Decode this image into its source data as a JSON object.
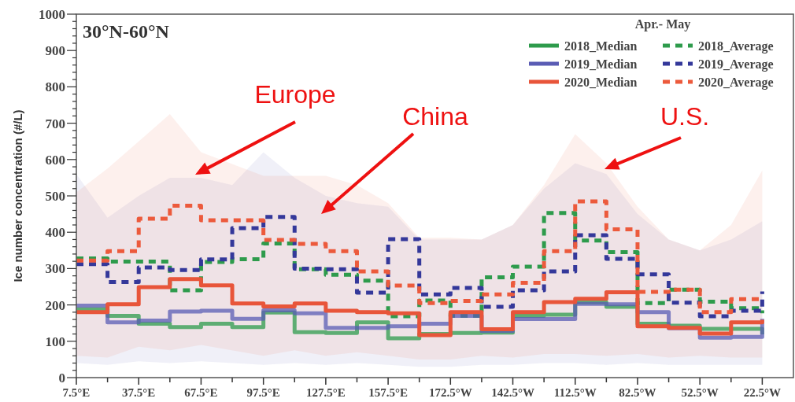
{
  "chart_data": {
    "type": "step",
    "title": "30°N-60°N",
    "ylabel": "Ice number concentration (#/L)",
    "legend_title": "Apr.- May",
    "legend": "top right",
    "x": [
      7.5,
      22.5,
      37.5,
      52.5,
      67.5,
      82.5,
      97.5,
      112.5,
      127.5,
      142.5,
      157.5,
      172.5,
      187.5,
      202.5,
      217.5,
      232.5,
      247.5,
      262.5,
      277.5,
      292.5,
      307.5,
      322.5,
      337.5
    ],
    "xlim": [
      7.5,
      352.5
    ],
    "xticks": [
      {
        "value": 7.5,
        "label": "7.5°E"
      },
      {
        "value": 22.5,
        "label": null
      },
      {
        "value": 37.5,
        "label": "37.5°E"
      },
      {
        "value": 52.5,
        "label": null
      },
      {
        "value": 67.5,
        "label": "67.5°E"
      },
      {
        "value": 82.5,
        "label": null
      },
      {
        "value": 97.5,
        "label": "97.5°E"
      },
      {
        "value": 112.5,
        "label": null
      },
      {
        "value": 127.5,
        "label": "127.5°E"
      },
      {
        "value": 142.5,
        "label": null
      },
      {
        "value": 157.5,
        "label": "157.5°E"
      },
      {
        "value": 172.5,
        "label": null
      },
      {
        "value": 187.5,
        "label": "172.5°W"
      },
      {
        "value": 202.5,
        "label": null
      },
      {
        "value": 217.5,
        "label": "142.5°W"
      },
      {
        "value": 232.5,
        "label": null
      },
      {
        "value": 247.5,
        "label": "112.5°W"
      },
      {
        "value": 262.5,
        "label": null
      },
      {
        "value": 277.5,
        "label": "82.5°W"
      },
      {
        "value": 292.5,
        "label": null
      },
      {
        "value": 307.5,
        "label": "52.5°W"
      },
      {
        "value": 322.5,
        "label": null
      },
      {
        "value": 337.5,
        "label": "22.5°W"
      }
    ],
    "ylim": [
      0,
      1000
    ],
    "yticks": [
      0,
      {
        "value": 20,
        "label": null
      },
      {
        "value": 40,
        "label": null
      },
      {
        "value": 60,
        "label": null
      },
      {
        "value": 80,
        "label": null
      },
      100,
      {
        "value": 120,
        "label": null
      },
      {
        "value": 140,
        "label": null
      },
      {
        "value": 160,
        "label": null
      },
      {
        "value": 180,
        "label": null
      },
      200,
      {
        "value": 220,
        "label": null
      },
      {
        "value": 240,
        "label": null
      },
      {
        "value": 260,
        "label": null
      },
      {
        "value": 280,
        "label": null
      },
      300,
      {
        "value": 320,
        "label": null
      },
      {
        "value": 340,
        "label": null
      },
      {
        "value": 360,
        "label": null
      },
      {
        "value": 380,
        "label": null
      },
      400,
      {
        "value": 420,
        "label": null
      },
      {
        "value": 440,
        "label": null
      },
      {
        "value": 460,
        "label": null
      },
      {
        "value": 480,
        "label": null
      },
      500,
      {
        "value": 520,
        "label": null
      },
      {
        "value": 540,
        "label": null
      },
      {
        "value": 560,
        "label": null
      },
      {
        "value": 580,
        "label": null
      },
      600,
      {
        "value": 620,
        "label": null
      },
      {
        "value": 640,
        "label": null
      },
      {
        "value": 660,
        "label": null
      },
      {
        "value": 680,
        "label": null
      },
      700,
      {
        "value": 720,
        "label": null
      },
      {
        "value": 740,
        "label": null
      },
      {
        "value": 760,
        "label": null
      },
      {
        "value": 780,
        "label": null
      },
      800,
      {
        "value": 820,
        "label": null
      },
      {
        "value": 840,
        "label": null
      },
      {
        "value": 860,
        "label": null
      },
      {
        "value": 880,
        "label": null
      },
      900,
      {
        "value": 920,
        "label": null
      },
      {
        "value": 940,
        "label": null
      },
      {
        "value": 960,
        "label": null
      },
      {
        "value": 980,
        "label": null
      },
      1000
    ],
    "series": [
      {
        "name": "2018_Median",
        "color": "#2e9b4c",
        "line_style": "solid",
        "values": [
          188,
          170,
          148,
          139,
          148,
          139,
          179,
          125,
          123,
          152,
          108,
          120,
          123,
          124,
          170,
          173,
          207,
          195,
          148,
          143,
          134,
          134,
          119
        ]
      },
      {
        "name": "2018_Average",
        "color": "#2e9b4c",
        "line_style": "dashed",
        "values": [
          328,
          319,
          319,
          240,
          318,
          326,
          369,
          298,
          283,
          267,
          169,
          212,
          170,
          276,
          305,
          453,
          377,
          345,
          205,
          242,
          209,
          191,
          177
        ]
      },
      {
        "name": "2019_Median",
        "color": "#5a5cb4",
        "line_style": "solid",
        "values": [
          198,
          152,
          157,
          182,
          184,
          162,
          185,
          177,
          137,
          137,
          141,
          148,
          170,
          128,
          161,
          161,
          203,
          202,
          180,
          136,
          110,
          112,
          162
        ],
        "lower": [
          40,
          35,
          45,
          40,
          45,
          40,
          35,
          40,
          35,
          40,
          35,
          30,
          30,
          35,
          35,
          40,
          40,
          35,
          40,
          35,
          35,
          35,
          35
        ],
        "upper": [
          560,
          440,
          500,
          550,
          550,
          530,
          620,
          550,
          500,
          480,
          470,
          380,
          380,
          380,
          420,
          520,
          590,
          560,
          450,
          380,
          350,
          380,
          430
        ]
      },
      {
        "name": "2019_Average",
        "color": "#34389a",
        "line_style": "dashed",
        "values": [
          312,
          263,
          303,
          296,
          325,
          411,
          442,
          300,
          298,
          234,
          381,
          229,
          247,
          195,
          240,
          292,
          392,
          327,
          284,
          206,
          169,
          184,
          237
        ]
      },
      {
        "name": "2020_Median",
        "color": "#e8553a",
        "line_style": "solid",
        "values": [
          180,
          202,
          249,
          271,
          254,
          204,
          196,
          204,
          184,
          180,
          177,
          117,
          180,
          133,
          180,
          208,
          217,
          235,
          141,
          137,
          121,
          152,
          159
        ],
        "lower": [
          60,
          55,
          85,
          75,
          90,
          null,
          60,
          75,
          60,
          70,
          60,
          50,
          50,
          60,
          55,
          65,
          65,
          60,
          65,
          55,
          60,
          55,
          55
        ],
        "upper": [
          510,
          575,
          650,
          725,
          620,
          null,
          555,
          555,
          555,
          530,
          480,
          385,
          385,
          380,
          420,
          530,
          670,
          590,
          470,
          380,
          350,
          420,
          570
        ]
      },
      {
        "name": "2020_Average",
        "color": "#ec5a3c",
        "line_style": "dashed",
        "values": [
          322,
          348,
          437,
          473,
          433,
          433,
          379,
          368,
          348,
          292,
          253,
          205,
          211,
          229,
          261,
          348,
          485,
          408,
          236,
          242,
          180,
          216,
          219
        ]
      }
    ],
    "annotations": [
      "Europe",
      "China",
      "U.S."
    ]
  }
}
